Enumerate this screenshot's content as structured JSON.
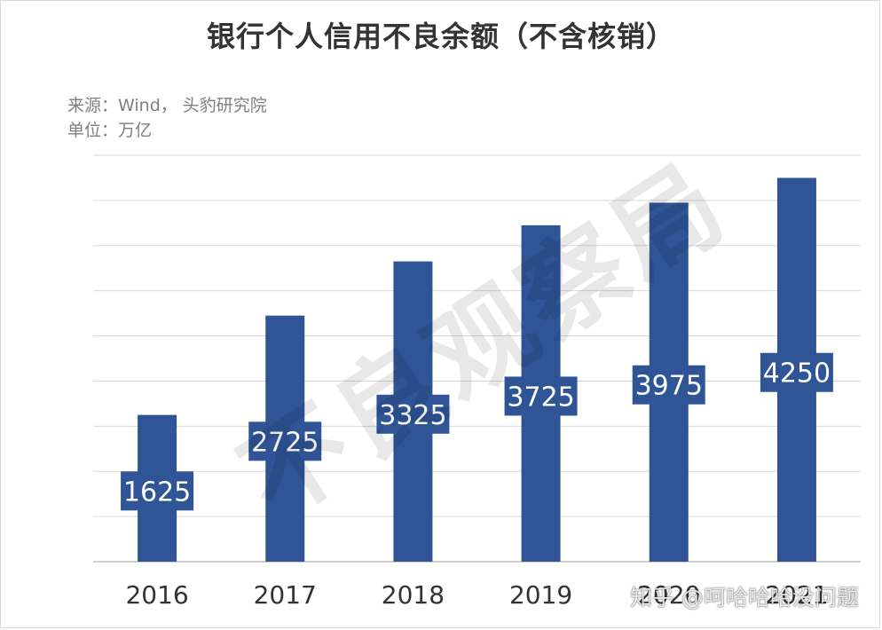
{
  "chart_data": {
    "type": "bar",
    "title": "银行个人信用不良余额（不含核销）",
    "source": "来源：Wind， 头豹研究院",
    "unit": "单位：万亿",
    "categories": [
      "2016",
      "2017",
      "2018",
      "2019",
      "2020",
      "2021"
    ],
    "values": [
      1625,
      2725,
      3325,
      3725,
      3975,
      4250
    ],
    "data_labels": [
      "1625",
      "2725",
      "3325",
      "3725",
      "3975",
      "4250"
    ],
    "ylim": [
      0,
      4500
    ],
    "grid": true,
    "bar_color": "#2f5597"
  },
  "watermark": "不良观察局",
  "credit": "知乎 @呵哈哈哈没问题"
}
